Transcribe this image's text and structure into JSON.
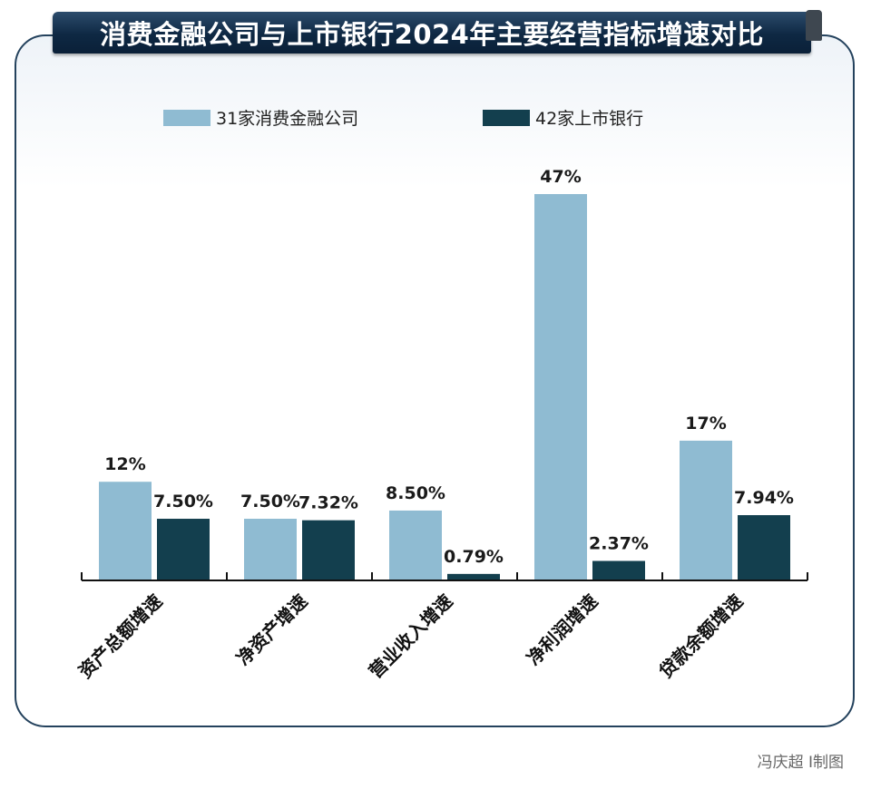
{
  "chart_data": {
    "type": "bar",
    "title": "消费金融公司与上市银行2024年主要经营指标增速对比",
    "categories": [
      "资产总额增速",
      "净资产增速",
      "营业收入增速",
      "净利润增速",
      "贷款余额增速"
    ],
    "series": [
      {
        "name": "31家消费金融公司",
        "values": [
          12,
          7.5,
          8.5,
          47,
          17
        ],
        "labels": [
          "12%",
          "7.50%",
          "8.50%",
          "47%",
          "17%"
        ],
        "color": "#8fbbd2"
      },
      {
        "name": "42家上市银行",
        "values": [
          7.5,
          7.32,
          0.79,
          2.37,
          7.94
        ],
        "labels": [
          "7.50%",
          "7.32%",
          "0.79%",
          "2.37%",
          "7.94%"
        ],
        "color": "#133f4e"
      }
    ],
    "ylim": [
      0,
      47
    ],
    "legend_position": "top",
    "grid": false
  },
  "credit": "冯庆超 Ⅰ制图"
}
